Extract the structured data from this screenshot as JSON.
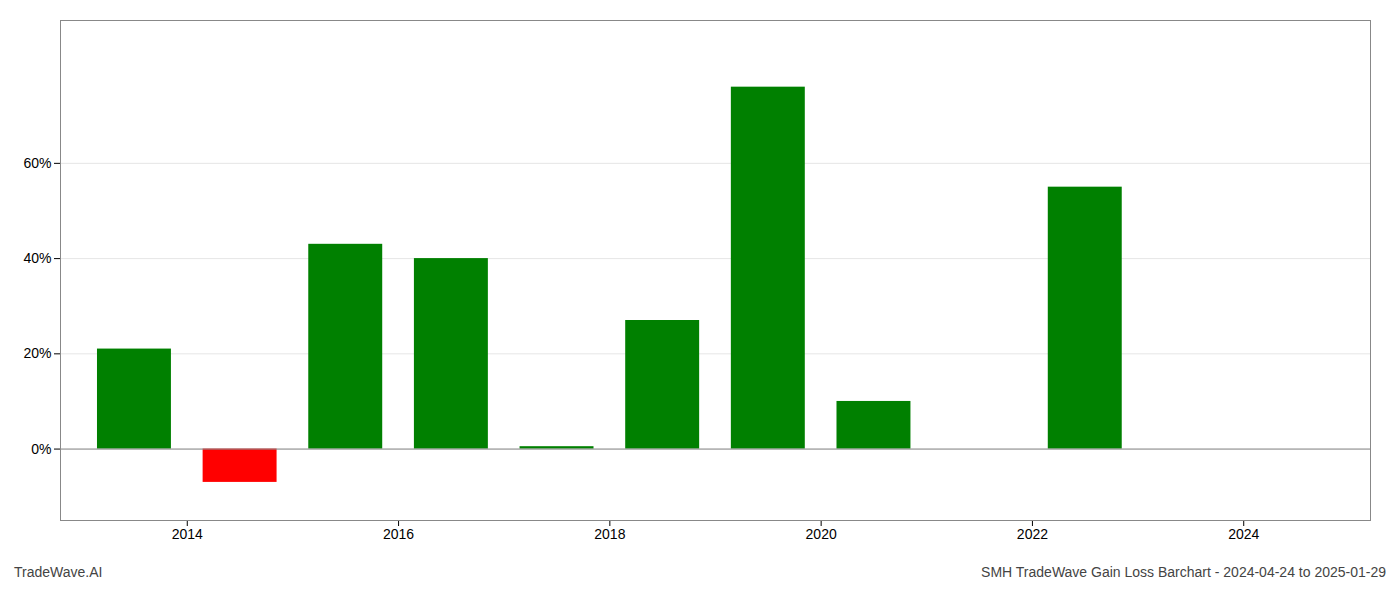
{
  "chart_data": {
    "type": "bar",
    "x": [
      2013.5,
      2014.5,
      2015.5,
      2016.5,
      2017.5,
      2018.5,
      2019.5,
      2020.5,
      2021.5,
      2022.5,
      2023.5
    ],
    "values": [
      0.21,
      -0.07,
      0.43,
      0.4,
      0.005,
      0.27,
      0.76,
      0.1,
      0.0,
      0.55,
      0.0
    ],
    "colors": [
      "#008000",
      "#ff0000",
      "#008000",
      "#008000",
      "#008000",
      "#008000",
      "#008000",
      "#008000",
      "#008000",
      "#008000",
      "#008000"
    ],
    "xlim": [
      2012.8,
      2025.2
    ],
    "xticks": [
      2014,
      2016,
      2018,
      2020,
      2022,
      2024
    ],
    "ylim": [
      -0.15,
      0.9
    ],
    "yticks": [
      {
        "value": 0.0,
        "label": "0%"
      },
      {
        "value": 0.2,
        "label": "20%"
      },
      {
        "value": 0.4,
        "label": "40%"
      },
      {
        "value": 0.6,
        "label": "60%"
      }
    ],
    "grid": true,
    "annotations": [
      "TradeWave.AI",
      "SMH TradeWave Gain Loss Barchart - 2024-04-24 to 2025-01-29"
    ]
  }
}
